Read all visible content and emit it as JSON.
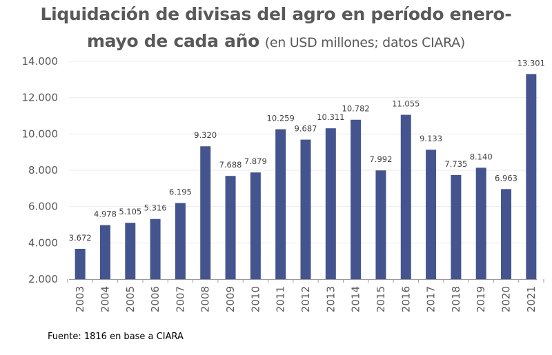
{
  "chart_data": {
    "type": "bar",
    "title": "Liquidación de divisas del agro en período enero-mayo de cada año",
    "title_line1": "Liquidación de divisas del agro en período enero-",
    "title_line2_main": "mayo de cada año",
    "title_line2_sub": "(en USD millones; datos CIARA)",
    "subtitle": "(en USD millones; datos CIARA)",
    "xlabel": "",
    "ylabel": "",
    "ylim": [
      2000,
      14000
    ],
    "yticks": [
      2000,
      4000,
      6000,
      8000,
      10000,
      12000,
      14000
    ],
    "ytick_labels": [
      "2.000",
      "4.000",
      "6.000",
      "8.000",
      "10.000",
      "12.000",
      "14.000"
    ],
    "grid": true,
    "legend": "none",
    "bar_color": "#44548f",
    "categories": [
      "2003",
      "2004",
      "2005",
      "2006",
      "2007",
      "2008",
      "2009",
      "2010",
      "2011",
      "2012",
      "2013",
      "2014",
      "2015",
      "2016",
      "2017",
      "2018",
      "2019",
      "2020",
      "2021"
    ],
    "values": [
      3672,
      4978,
      5105,
      5316,
      6195,
      9320,
      7688,
      7879,
      10259,
      9687,
      10311,
      10782,
      7992,
      11055,
      9133,
      7735,
      8140,
      6963,
      13301
    ],
    "data_labels": [
      "3.672",
      "4.978",
      "5.105",
      "5.316",
      "6.195",
      "9.320",
      "7.688",
      "7.879",
      "10.259",
      "9.687",
      "10.311",
      "10.782",
      "7.992",
      "11.055",
      "9.133",
      "7.735",
      "8.140",
      "6.963",
      "13.301"
    ],
    "source": "Fuente: 1816 en base a CIARA"
  }
}
